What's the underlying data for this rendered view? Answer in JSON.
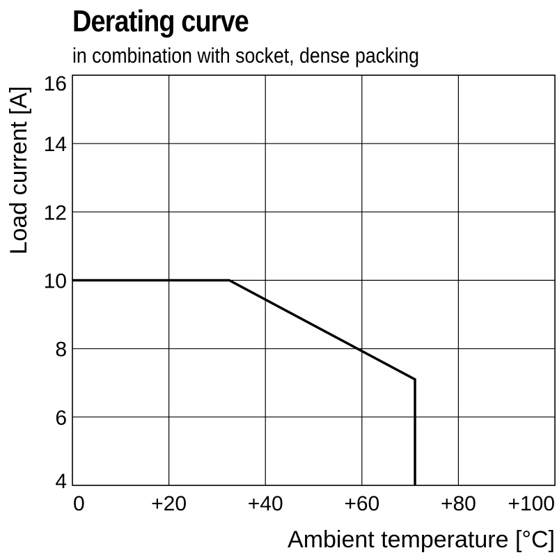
{
  "chart_data": {
    "type": "line",
    "title": "Derating curve",
    "subtitle": "in combination with socket, dense packing",
    "xlabel": "Ambient temperature [°C]",
    "ylabel": "Load current [A]",
    "xlim": [
      0,
      100
    ],
    "ylim": [
      4,
      16
    ],
    "x_ticks": [
      "0",
      "+20",
      "+40",
      "+60",
      "+80",
      "+100"
    ],
    "y_ticks": [
      "4",
      "6",
      "8",
      "10",
      "12",
      "14",
      "16"
    ],
    "grid": true,
    "series": [
      {
        "x": [
          0,
          32.5,
          71,
          71
        ],
        "y": [
          10,
          10,
          7.1,
          4
        ],
        "color": "#000000"
      }
    ]
  }
}
